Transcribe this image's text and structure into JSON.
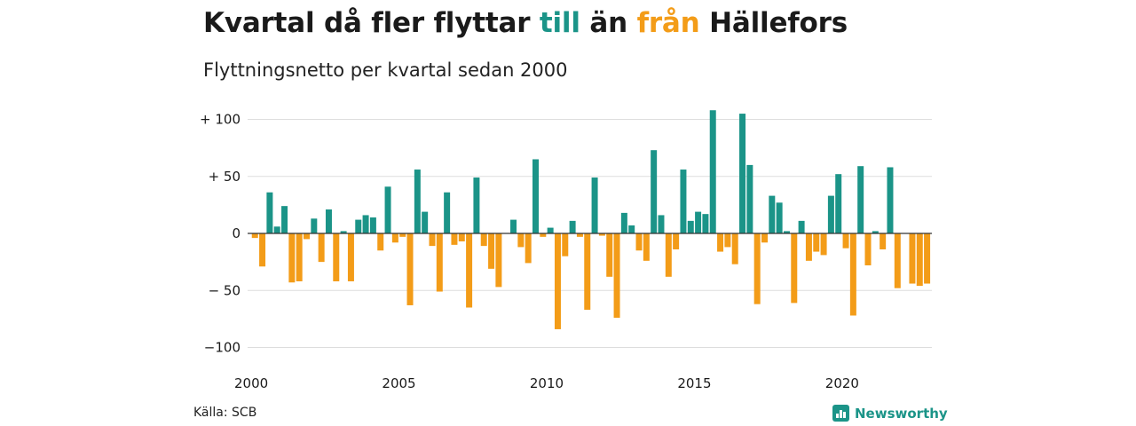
{
  "title": {
    "part1": "Kvartal då fler flyttar ",
    "in_word": "till",
    "part2": " än ",
    "out_word": "från",
    "part3": " Hällefors"
  },
  "subtitle": "Flyttningsnetto per kvartal sedan 2000",
  "source": "Källa: SCB",
  "brand": "Newsworthy",
  "colors": {
    "positive": "#1b9488",
    "negative": "#f39c18",
    "grid": "#dddddd",
    "text": "#1a1a1a"
  },
  "chart_data": {
    "type": "bar",
    "x_start": "2000 Q1",
    "x_ticks": [
      "2000",
      "2005",
      "2010",
      "2015",
      "2020"
    ],
    "y_ticks": [
      {
        "value": 100,
        "label": "+ 100"
      },
      {
        "value": 50,
        "label": "+  50"
      },
      {
        "value": 0,
        "label": "0"
      },
      {
        "value": -50,
        "label": "− 50"
      },
      {
        "value": -100,
        "label": "−100"
      }
    ],
    "ylim": [
      -110,
      110
    ],
    "grid": true,
    "values": [
      -4,
      -29,
      36,
      6,
      24,
      -43,
      -42,
      -5,
      13,
      -25,
      21,
      -42,
      2,
      -42,
      12,
      16,
      14,
      -15,
      41,
      -8,
      -3,
      -63,
      56,
      19,
      -11,
      -51,
      36,
      -10,
      -7,
      -65,
      49,
      -11,
      -31,
      -47,
      0,
      12,
      -12,
      -26,
      65,
      -3,
      5,
      -84,
      -20,
      11,
      -3,
      -67,
      49,
      -2,
      -38,
      -74,
      18,
      7,
      -15,
      -24,
      73,
      16,
      -38,
      -14,
      56,
      11,
      19,
      17,
      108,
      -16,
      -12,
      -27,
      105,
      60,
      -62,
      -8,
      33,
      27,
      2,
      -61,
      11,
      -24,
      -16,
      -19,
      33,
      52,
      -13,
      -72,
      59,
      -28,
      2,
      -14,
      58,
      -48,
      0,
      -44,
      -46,
      -44
    ]
  }
}
